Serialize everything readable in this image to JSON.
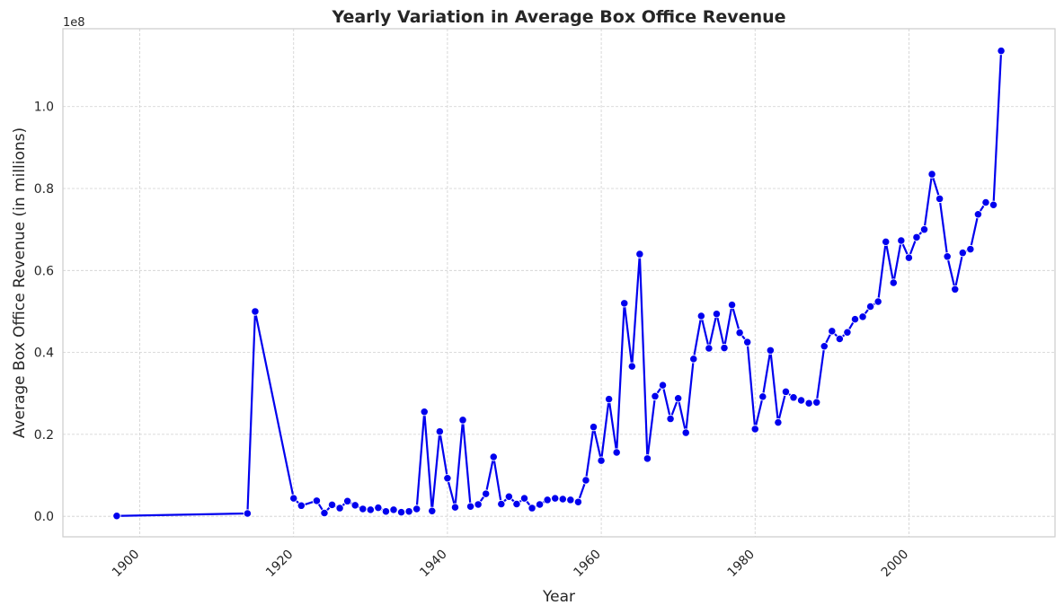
{
  "chart_data": {
    "type": "line",
    "title": "Yearly Variation in Average Box Office Revenue",
    "xlabel": "Year",
    "ylabel": "Average Box Office Revenue (in millions)",
    "y_offset_label": "1e8",
    "xlim": [
      1890,
      2019
    ],
    "ylim": [
      -0.05,
      1.19
    ],
    "y_scale_factor": 100000000,
    "grid": true,
    "grid_style": "dashed",
    "x_tick_rotation": 45,
    "x_ticks": [
      {
        "value": 1900,
        "label": "1900"
      },
      {
        "value": 1920,
        "label": "1920"
      },
      {
        "value": 1940,
        "label": "1940"
      },
      {
        "value": 1960,
        "label": "1960"
      },
      {
        "value": 1980,
        "label": "1980"
      },
      {
        "value": 2000,
        "label": "2000"
      }
    ],
    "y_ticks": [
      {
        "value": 0.0,
        "label": "0.0"
      },
      {
        "value": 0.2,
        "label": "0.2"
      },
      {
        "value": 0.4,
        "label": "0.4"
      },
      {
        "value": 0.6,
        "label": "0.6"
      },
      {
        "value": 0.8,
        "label": "0.8"
      },
      {
        "value": 1.0,
        "label": "1.0"
      }
    ],
    "series": [
      {
        "color": "#0000ee",
        "marker": "circle",
        "x": [
          1897,
          1914,
          1915,
          1920,
          1921,
          1923,
          1924,
          1925,
          1926,
          1927,
          1928,
          1929,
          1930,
          1931,
          1932,
          1933,
          1934,
          1935,
          1936,
          1937,
          1938,
          1939,
          1940,
          1941,
          1942,
          1943,
          1944,
          1945,
          1946,
          1947,
          1948,
          1949,
          1950,
          1951,
          1952,
          1953,
          1954,
          1955,
          1956,
          1957,
          1958,
          1959,
          1960,
          1961,
          1962,
          1963,
          1964,
          1965,
          1966,
          1967,
          1968,
          1969,
          1970,
          1971,
          1972,
          1973,
          1974,
          1975,
          1976,
          1977,
          1978,
          1979,
          1980,
          1981,
          1982,
          1983,
          1984,
          1985,
          1986,
          1987,
          1988,
          1989,
          1990,
          1991,
          1992,
          1993,
          1994,
          1995,
          1996,
          1997,
          1998,
          1999,
          2000,
          2001,
          2002,
          2003,
          2004,
          2005,
          2006,
          2007,
          2008,
          2009,
          2010,
          2011,
          2012
        ],
        "y": [
          0.001,
          0.007,
          0.5,
          0.044,
          0.026,
          0.038,
          0.008,
          0.028,
          0.02,
          0.037,
          0.027,
          0.018,
          0.016,
          0.021,
          0.012,
          0.016,
          0.01,
          0.012,
          0.018,
          0.255,
          0.013,
          0.207,
          0.093,
          0.022,
          0.235,
          0.024,
          0.029,
          0.055,
          0.145,
          0.03,
          0.048,
          0.03,
          0.044,
          0.02,
          0.029,
          0.04,
          0.044,
          0.042,
          0.04,
          0.035,
          0.088,
          0.218,
          0.136,
          0.286,
          0.156,
          0.52,
          0.366,
          0.64,
          0.141,
          0.293,
          0.32,
          0.238,
          0.288,
          0.204,
          0.384,
          0.489,
          0.41,
          0.494,
          0.411,
          0.516,
          0.448,
          0.425,
          0.213,
          0.292,
          0.405,
          0.229,
          0.304,
          0.29,
          0.283,
          0.276,
          0.278,
          0.415,
          0.452,
          0.433,
          0.449,
          0.481,
          0.487,
          0.512,
          0.524,
          0.67,
          0.57,
          0.673,
          0.631,
          0.681,
          0.7,
          0.835,
          0.775,
          0.634,
          0.554,
          0.643,
          0.652,
          0.737,
          0.766,
          0.76,
          1.136
        ]
      }
    ]
  }
}
